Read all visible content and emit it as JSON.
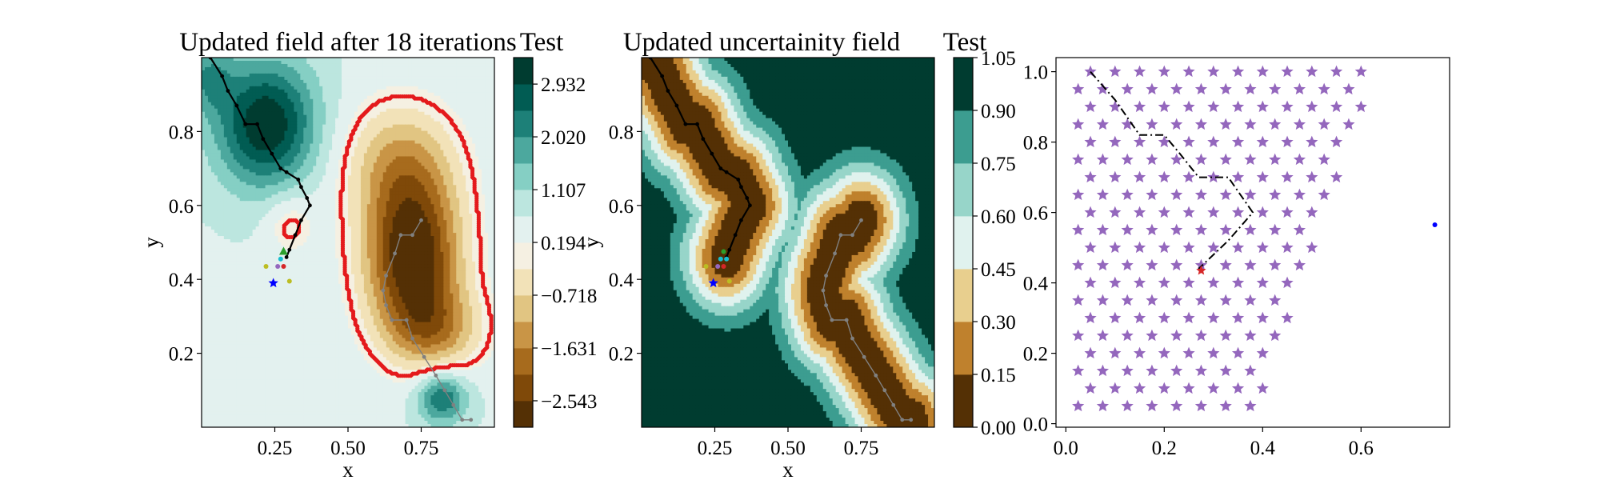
{
  "chart_data": [
    {
      "type": "contour",
      "title": "Updated field after 18 iterations",
      "colorbar_label": "Test",
      "xlabel": "x",
      "ylabel": "y",
      "xlim": [
        0.0,
        1.0
      ],
      "ylim": [
        0.0,
        1.0
      ],
      "xticks": [
        "0.25",
        "0.50",
        "0.75"
      ],
      "yticks": [
        "0.2",
        "0.4",
        "0.6",
        "0.8"
      ],
      "colorbar_ticks": [
        "2.932",
        "2.020",
        "1.107",
        "0.194",
        "−0.718",
        "−1.631",
        "−2.543"
      ],
      "colorbar_levels": [
        -3.0,
        -2.543,
        -2.087,
        -1.631,
        -1.175,
        -0.718,
        -0.262,
        0.194,
        0.65,
        1.107,
        1.563,
        2.02,
        2.476,
        2.932,
        3.39
      ],
      "colormap": [
        "#543005",
        "#8c510a",
        "#bf812d",
        "#dfc27d",
        "#f6e8c3",
        "#f5f5f5",
        "#c7eae5",
        "#80cdc1",
        "#35978f",
        "#01665e",
        "#003c30"
      ],
      "zero_contour_color": "#e41a1c",
      "path": {
        "color": "#000000",
        "points": [
          [
            0.03,
            1.0
          ],
          [
            0.07,
            0.95
          ],
          [
            0.09,
            0.91
          ],
          [
            0.12,
            0.87
          ],
          [
            0.15,
            0.82
          ],
          [
            0.19,
            0.82
          ],
          [
            0.21,
            0.78
          ],
          [
            0.24,
            0.74
          ],
          [
            0.27,
            0.7
          ],
          [
            0.29,
            0.69
          ],
          [
            0.33,
            0.67
          ],
          [
            0.34,
            0.65
          ],
          [
            0.36,
            0.62
          ],
          [
            0.37,
            0.6
          ],
          [
            0.34,
            0.56
          ],
          [
            0.32,
            0.52
          ],
          [
            0.3,
            0.48
          ],
          [
            0.29,
            0.46
          ]
        ]
      },
      "path2": {
        "color": "#808080",
        "points": [
          [
            0.75,
            0.56
          ],
          [
            0.72,
            0.52
          ],
          [
            0.68,
            0.52
          ],
          [
            0.66,
            0.47
          ],
          [
            0.63,
            0.41
          ],
          [
            0.62,
            0.37
          ],
          [
            0.63,
            0.33
          ],
          [
            0.65,
            0.29
          ],
          [
            0.7,
            0.29
          ],
          [
            0.72,
            0.24
          ],
          [
            0.76,
            0.19
          ],
          [
            0.8,
            0.14
          ],
          [
            0.83,
            0.1
          ],
          [
            0.86,
            0.06
          ],
          [
            0.89,
            0.02
          ],
          [
            0.92,
            0.02
          ]
        ]
      },
      "markers": [
        {
          "x": 0.245,
          "y": 0.39,
          "shape": "star",
          "color": "#0000ff"
        },
        {
          "x": 0.28,
          "y": 0.475,
          "shape": "triangle",
          "color": "#2ca02c"
        },
        {
          "x": 0.27,
          "y": 0.455,
          "shape": "dot",
          "color": "#17becf"
        },
        {
          "x": 0.26,
          "y": 0.435,
          "shape": "dot",
          "color": "#9467bd"
        },
        {
          "x": 0.28,
          "y": 0.435,
          "shape": "dot",
          "color": "#d62728"
        },
        {
          "x": 0.22,
          "y": 0.435,
          "shape": "dot",
          "color": "#bcbd22"
        },
        {
          "x": 0.3,
          "y": 0.395,
          "shape": "dot",
          "color": "#bcbd22"
        }
      ]
    },
    {
      "type": "contour",
      "title": "Updated uncertainity field",
      "colorbar_label": "Test",
      "xlabel": "x",
      "ylabel": "y",
      "xlim": [
        0.0,
        1.0
      ],
      "ylim": [
        0.0,
        1.0
      ],
      "xticks": [
        "0.25",
        "0.50",
        "0.75"
      ],
      "yticks": [
        "0.2",
        "0.4",
        "0.6",
        "0.8"
      ],
      "colorbar_ticks": [
        "1.05",
        "0.90",
        "0.75",
        "0.60",
        "0.45",
        "0.30",
        "0.15",
        "0.00"
      ],
      "colorbar_levels": [
        0.0,
        0.15,
        0.3,
        0.45,
        0.6,
        0.75,
        0.9,
        1.05
      ],
      "colormap": [
        "#543005",
        "#bf812d",
        "#e8cf8e",
        "#e0f2ee",
        "#97d5c9",
        "#3c9d90",
        "#003c30"
      ],
      "level_line_color": "#ffeb3b",
      "path": {
        "color": "#000000",
        "points": [
          [
            0.03,
            1.0
          ],
          [
            0.07,
            0.95
          ],
          [
            0.09,
            0.91
          ],
          [
            0.12,
            0.87
          ],
          [
            0.15,
            0.82
          ],
          [
            0.19,
            0.82
          ],
          [
            0.21,
            0.78
          ],
          [
            0.24,
            0.74
          ],
          [
            0.27,
            0.7
          ],
          [
            0.29,
            0.69
          ],
          [
            0.33,
            0.67
          ],
          [
            0.34,
            0.65
          ],
          [
            0.36,
            0.62
          ],
          [
            0.37,
            0.6
          ],
          [
            0.34,
            0.56
          ],
          [
            0.32,
            0.52
          ],
          [
            0.3,
            0.48
          ],
          [
            0.29,
            0.46
          ]
        ]
      },
      "path2": {
        "color": "#808080",
        "points": [
          [
            0.75,
            0.56
          ],
          [
            0.72,
            0.52
          ],
          [
            0.68,
            0.52
          ],
          [
            0.66,
            0.47
          ],
          [
            0.63,
            0.41
          ],
          [
            0.62,
            0.37
          ],
          [
            0.63,
            0.33
          ],
          [
            0.65,
            0.29
          ],
          [
            0.7,
            0.29
          ],
          [
            0.72,
            0.24
          ],
          [
            0.76,
            0.19
          ],
          [
            0.8,
            0.14
          ],
          [
            0.83,
            0.1
          ],
          [
            0.86,
            0.06
          ],
          [
            0.89,
            0.02
          ],
          [
            0.92,
            0.02
          ]
        ]
      },
      "markers": [
        {
          "x": 0.245,
          "y": 0.39,
          "shape": "star",
          "color": "#0000ff"
        },
        {
          "x": 0.28,
          "y": 0.475,
          "shape": "dot",
          "color": "#2ca02c"
        },
        {
          "x": 0.27,
          "y": 0.455,
          "shape": "dot",
          "color": "#17becf"
        },
        {
          "x": 0.29,
          "y": 0.455,
          "shape": "dot",
          "color": "#17becf"
        },
        {
          "x": 0.26,
          "y": 0.435,
          "shape": "dot",
          "color": "#9467bd"
        },
        {
          "x": 0.28,
          "y": 0.435,
          "shape": "dot",
          "color": "#d62728"
        },
        {
          "x": 0.22,
          "y": 0.435,
          "shape": "dot",
          "color": "#bcbd22"
        },
        {
          "x": 0.3,
          "y": 0.395,
          "shape": "dot",
          "color": "#bcbd22"
        }
      ]
    },
    {
      "type": "scatter",
      "xlim": [
        -0.02,
        0.78
      ],
      "ylim": [
        -0.01,
        1.04
      ],
      "xticks": [
        0.0,
        0.2,
        0.4,
        0.6
      ],
      "xtick_labels": [
        "0.0",
        "0.2",
        "0.4",
        "0.6"
      ],
      "yticks": [
        0.0,
        0.2,
        0.4,
        0.6,
        0.8,
        1.0
      ],
      "ytick_labels": [
        "0.0",
        "0.2",
        "0.4",
        "0.6",
        "0.8",
        "1.0"
      ],
      "star_color": "#9467bd",
      "grid_spacing": 0.05,
      "grid_x_start": 0.025,
      "rows": [
        {
          "y": 1.0,
          "x_max": 0.6
        },
        {
          "y": 0.9,
          "x_max": 0.6
        },
        {
          "y": 0.8,
          "x_max": 0.55
        },
        {
          "y": 0.7,
          "x_max": 0.55
        },
        {
          "y": 0.6,
          "x_max": 0.5
        },
        {
          "y": 0.5,
          "x_max": 0.5
        },
        {
          "y": 0.4,
          "x_max": 0.45
        },
        {
          "y": 0.3,
          "x_max": 0.45
        },
        {
          "y": 0.2,
          "x_max": 0.4
        },
        {
          "y": 0.1,
          "x_max": 0.4
        }
      ],
      "path": {
        "color": "#000000",
        "style": "dashdot",
        "points": [
          [
            0.05,
            1.0
          ],
          [
            0.1,
            0.92
          ],
          [
            0.15,
            0.82
          ],
          [
            0.2,
            0.82
          ],
          [
            0.23,
            0.77
          ],
          [
            0.27,
            0.7
          ],
          [
            0.33,
            0.7
          ],
          [
            0.38,
            0.6
          ],
          [
            0.33,
            0.52
          ],
          [
            0.27,
            0.44
          ]
        ]
      },
      "markers": [
        {
          "x": 0.275,
          "y": 0.435,
          "shape": "star",
          "color": "#d62728"
        },
        {
          "x": 0.75,
          "y": 0.565,
          "shape": "dot",
          "color": "#0000ff"
        }
      ]
    }
  ]
}
